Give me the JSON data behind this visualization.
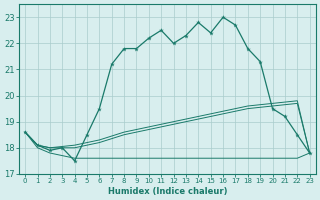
{
  "xlabel": "Humidex (Indice chaleur)",
  "x_values": [
    0,
    1,
    2,
    3,
    4,
    5,
    6,
    7,
    8,
    9,
    10,
    11,
    12,
    13,
    14,
    15,
    16,
    17,
    18,
    19,
    20,
    21,
    22,
    23
  ],
  "main_line": [
    18.6,
    18.1,
    17.9,
    18.0,
    17.5,
    18.5,
    19.5,
    21.2,
    21.8,
    21.8,
    22.2,
    22.5,
    22.0,
    22.3,
    22.8,
    22.4,
    23.0,
    22.7,
    21.8,
    21.3,
    19.5,
    19.2,
    18.5,
    17.8
  ],
  "line_flat": [
    18.6,
    18.0,
    17.8,
    17.7,
    17.6,
    17.6,
    17.6,
    17.6,
    17.6,
    17.6,
    17.6,
    17.6,
    17.6,
    17.6,
    17.6,
    17.6,
    17.6,
    17.6,
    17.6,
    17.6,
    17.6,
    17.6,
    17.6,
    17.8
  ],
  "line_diag1": [
    18.6,
    18.1,
    18.0,
    18.05,
    18.1,
    18.2,
    18.3,
    18.45,
    18.6,
    18.7,
    18.8,
    18.9,
    19.0,
    19.1,
    19.2,
    19.3,
    19.4,
    19.5,
    19.6,
    19.65,
    19.7,
    19.75,
    19.8,
    17.8
  ],
  "line_diag2": [
    18.6,
    18.1,
    18.0,
    18.0,
    18.0,
    18.1,
    18.2,
    18.35,
    18.5,
    18.6,
    18.7,
    18.8,
    18.9,
    19.0,
    19.1,
    19.2,
    19.3,
    19.4,
    19.5,
    19.55,
    19.6,
    19.65,
    19.7,
    17.8
  ],
  "line_color": "#1a7a6a",
  "bg_color": "#d8eeee",
  "grid_color": "#aacccc",
  "ylim": [
    17.0,
    23.5
  ],
  "yticks": [
    17,
    18,
    19,
    20,
    21,
    22,
    23
  ],
  "xlim": [
    -0.5,
    23.5
  ]
}
